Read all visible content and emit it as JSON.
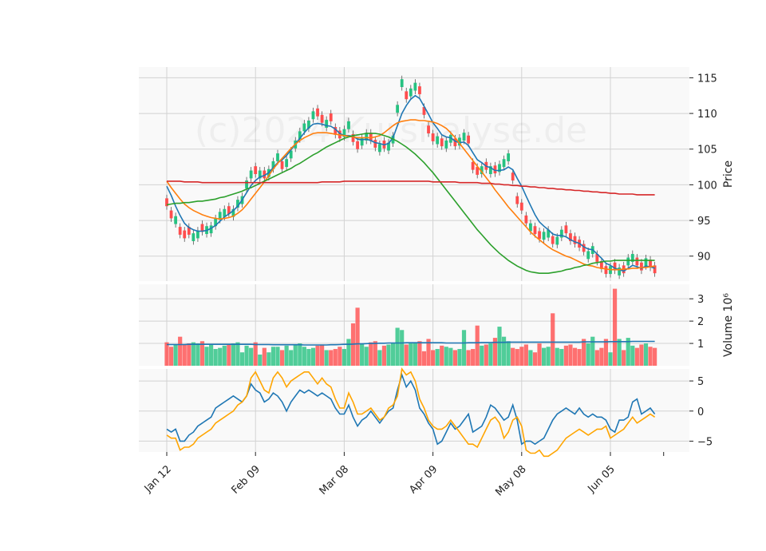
{
  "chart_data": {
    "type": "candlestick",
    "watermark": "(c)2024 Kursnalyse.de",
    "panels": {
      "price": {
        "ylabel": "Price",
        "yticks": [
          90,
          95,
          100,
          105,
          110,
          115
        ],
        "ylim": [
          86.5,
          116.5
        ]
      },
      "volume": {
        "ylabel": "Volume  10^6",
        "yticks": [
          "1",
          "2",
          "3"
        ],
        "ylim": [
          0,
          3.65
        ]
      },
      "oscillator": {
        "ylabel": "",
        "yticks": [
          "5",
          "0",
          "−5"
        ],
        "ylim": [
          -6.8,
          7
        ]
      }
    },
    "x_tick_labels": [
      "Jan 12",
      "Feb 09",
      "Mar 08",
      "Apr 09",
      "May 08",
      "Jun 05"
    ],
    "x_tick_index": [
      0,
      20,
      40,
      60,
      80,
      100
    ],
    "candles_close": [
      97.0,
      95.3,
      95.6,
      93.0,
      92.5,
      93.0,
      93.2,
      93.6,
      93.4,
      94.2,
      94.3,
      95.3,
      96.2,
      96.6,
      95.9,
      96.6,
      97.9,
      98.4,
      100.6,
      102.0,
      101.5,
      102.0,
      100.9,
      102.2,
      103.3,
      104.4,
      102.2,
      103.6,
      104.8,
      106.2,
      107.5,
      108.6,
      109.0,
      110.3,
      109.6,
      108.7,
      109.1,
      108.9,
      107.0,
      106.5,
      107.8,
      108.9,
      106.0,
      105.0,
      106.6,
      107.3,
      106.2,
      105.2,
      105.7,
      105.1,
      105.9,
      106.9,
      111.2,
      114.8,
      112.0,
      113.5,
      114.3,
      112.7,
      109.8,
      107.2,
      106.1,
      106.8,
      105.4,
      106.2,
      107.0,
      105.4,
      106.6,
      107.3,
      105.8,
      102.1,
      101.4,
      102.6,
      102.1,
      102.6,
      101.6,
      102.9,
      103.6,
      104.4,
      100.6,
      97.3,
      96.4,
      94.6,
      94.6,
      93.1,
      92.4,
      93.4,
      93.7,
      91.7,
      92.7,
      93.7,
      93.2,
      92.1,
      91.7,
      91.2,
      90.6,
      90.7,
      91.4,
      89.2,
      88.2,
      87.5,
      88.6,
      88.0,
      88.4,
      87.6,
      89.8,
      90.3,
      88.7,
      88.0,
      89.7,
      88.4,
      87.6
    ],
    "candles_up": [
      false,
      false,
      true,
      false,
      false,
      false,
      true,
      true,
      false,
      true,
      true,
      true,
      true,
      true,
      false,
      true,
      true,
      true,
      true,
      true,
      false,
      true,
      false,
      true,
      true,
      true,
      false,
      true,
      true,
      true,
      true,
      true,
      true,
      true,
      false,
      false,
      true,
      false,
      false,
      false,
      true,
      true,
      false,
      false,
      true,
      true,
      false,
      false,
      true,
      false,
      true,
      true,
      true,
      true,
      false,
      true,
      true,
      false,
      false,
      false,
      false,
      true,
      false,
      true,
      true,
      false,
      true,
      true,
      false,
      false,
      false,
      true,
      false,
      true,
      false,
      true,
      true,
      true,
      false,
      false,
      false,
      false,
      true,
      false,
      false,
      true,
      true,
      false,
      true,
      true,
      false,
      false,
      false,
      false,
      false,
      true,
      true,
      false,
      false,
      false,
      true,
      false,
      true,
      false,
      true,
      true,
      false,
      false,
      true,
      false,
      false
    ],
    "volume_millions": [
      1.05,
      0.85,
      0.95,
      1.3,
      0.95,
      1.0,
      1.05,
      1.0,
      1.1,
      0.85,
      0.95,
      0.75,
      0.8,
      0.9,
      0.95,
      1.0,
      1.05,
      0.6,
      0.9,
      0.8,
      1.05,
      0.5,
      0.8,
      0.6,
      0.85,
      0.85,
      0.7,
      0.9,
      0.7,
      0.95,
      1.0,
      0.85,
      0.75,
      0.8,
      0.9,
      0.95,
      0.7,
      0.7,
      0.75,
      0.85,
      0.75,
      1.2,
      1.9,
      2.6,
      1.0,
      0.85,
      1.05,
      1.1,
      0.7,
      0.9,
      0.95,
      1.0,
      1.7,
      1.6,
      0.95,
      1.0,
      1.05,
      1.1,
      0.65,
      1.2,
      0.7,
      0.75,
      0.9,
      0.85,
      0.8,
      0.7,
      0.75,
      1.6,
      0.7,
      0.75,
      1.8,
      0.9,
      0.95,
      1.0,
      1.25,
      1.75,
      1.3,
      1.1,
      0.8,
      0.75,
      0.85,
      0.95,
      0.7,
      0.6,
      1.0,
      0.8,
      0.85,
      2.35,
      0.8,
      0.75,
      0.9,
      0.95,
      0.8,
      0.75,
      1.2,
      1.0,
      1.3,
      0.7,
      0.8,
      1.2,
      0.6,
      3.45,
      1.2,
      0.7,
      1.25,
      0.9,
      0.8,
      0.95,
      1.0,
      0.85,
      0.8
    ],
    "series": [
      {
        "color": "#1f77b4",
        "role": "price short average",
        "values": [
          99.8,
          98.5,
          97.0,
          95.7,
          94.6,
          94.0,
          93.7,
          93.5,
          93.5,
          93.6,
          93.9,
          94.3,
          94.9,
          95.5,
          95.9,
          96.4,
          97.0,
          97.9,
          98.9,
          99.9,
          100.6,
          101.1,
          101.3,
          101.7,
          102.4,
          103.1,
          103.5,
          104.1,
          104.9,
          105.7,
          106.5,
          107.3,
          108.0,
          108.5,
          108.6,
          108.5,
          108.3,
          108.2,
          107.8,
          107.2,
          106.9,
          106.9,
          106.8,
          106.4,
          106.3,
          106.4,
          106.2,
          105.9,
          105.8,
          105.6,
          105.8,
          106.6,
          108.3,
          110.0,
          111.1,
          112.0,
          112.5,
          112.1,
          111.0,
          109.9,
          108.7,
          107.9,
          107.0,
          106.7,
          106.6,
          106.1,
          105.9,
          106.0,
          105.5,
          104.5,
          103.5,
          103.1,
          102.6,
          102.4,
          102.0,
          102.0,
          102.1,
          102.5,
          102.1,
          100.9,
          99.8,
          98.4,
          97.1,
          95.8,
          94.8,
          94.2,
          93.7,
          93.1,
          92.9,
          92.9,
          92.7,
          92.3,
          92.0,
          91.8,
          91.3,
          91.0,
          90.9,
          90.3,
          89.7,
          89.0,
          88.7,
          88.3,
          88.1,
          87.9,
          88.3,
          88.7,
          88.5,
          88.3,
          88.6,
          88.5,
          88.3
        ]
      },
      {
        "color": "#ff7f0e",
        "role": "price medium average",
        "values": [
          100.5,
          99.6,
          98.8,
          98.0,
          97.3,
          96.8,
          96.4,
          96.1,
          95.8,
          95.6,
          95.4,
          95.3,
          95.2,
          95.3,
          95.4,
          95.6,
          96.0,
          96.5,
          97.2,
          98.0,
          98.8,
          99.6,
          100.4,
          101.3,
          102.2,
          103.0,
          103.7,
          104.4,
          105.1,
          105.7,
          106.2,
          106.6,
          106.9,
          107.2,
          107.3,
          107.3,
          107.3,
          107.2,
          107.1,
          107.0,
          106.9,
          106.8,
          106.7,
          106.6,
          106.6,
          106.6,
          106.6,
          106.7,
          106.9,
          107.3,
          107.8,
          108.3,
          108.7,
          108.9,
          109.0,
          109.1,
          109.1,
          109.0,
          109.0,
          108.9,
          108.8,
          108.6,
          108.3,
          107.9,
          107.3,
          106.6,
          105.8,
          105.0,
          104.2,
          103.4,
          102.6,
          101.8,
          101.0,
          100.2,
          99.3,
          98.5,
          97.7,
          96.9,
          96.2,
          95.5,
          94.8,
          94.1,
          93.4,
          92.8,
          92.3,
          91.8,
          91.3,
          90.9,
          90.6,
          90.3,
          90.0,
          89.8,
          89.5,
          89.2,
          88.9,
          88.7,
          88.6,
          88.4,
          88.3,
          88.2,
          88.1,
          88.1,
          88.1,
          88.2,
          88.2,
          88.3,
          88.3,
          88.4,
          88.4,
          88.5,
          88.6
        ]
      },
      {
        "color": "#2ca02c",
        "role": "price long average",
        "values": [
          97.2,
          97.3,
          97.4,
          97.4,
          97.5,
          97.5,
          97.6,
          97.7,
          97.7,
          97.8,
          97.9,
          98.0,
          98.2,
          98.3,
          98.5,
          98.7,
          98.9,
          99.1,
          99.4,
          99.6,
          99.9,
          100.2,
          100.5,
          100.8,
          101.1,
          101.4,
          101.7,
          102.0,
          102.3,
          102.7,
          103.0,
          103.4,
          103.8,
          104.2,
          104.5,
          104.9,
          105.3,
          105.6,
          105.9,
          106.2,
          106.5,
          106.7,
          106.9,
          107.0,
          107.1,
          107.2,
          107.2,
          107.2,
          107.1,
          106.9,
          106.7,
          106.4,
          106.1,
          105.7,
          105.3,
          104.8,
          104.3,
          103.7,
          103.1,
          102.4,
          101.7,
          100.9,
          100.1,
          99.3,
          98.5,
          97.7,
          96.9,
          96.1,
          95.3,
          94.5,
          93.7,
          93.0,
          92.3,
          91.6,
          91.0,
          90.4,
          89.9,
          89.4,
          89.0,
          88.6,
          88.3,
          88.0,
          87.8,
          87.7,
          87.6,
          87.6,
          87.6,
          87.7,
          87.8,
          87.9,
          88.1,
          88.2,
          88.4,
          88.5,
          88.7,
          88.8,
          89.0,
          89.1,
          89.2,
          89.3,
          89.3,
          89.4,
          89.4,
          89.4,
          89.4,
          89.4,
          89.4,
          89.4,
          89.4,
          89.4,
          89.4
        ]
      },
      {
        "color": "#d62728",
        "role": "price longest average",
        "values": [
          100.5,
          100.5,
          100.5,
          100.5,
          100.4,
          100.4,
          100.4,
          100.4,
          100.3,
          100.3,
          100.3,
          100.3,
          100.3,
          100.3,
          100.3,
          100.3,
          100.3,
          100.3,
          100.3,
          100.3,
          100.3,
          100.3,
          100.3,
          100.3,
          100.3,
          100.3,
          100.3,
          100.3,
          100.3,
          100.3,
          100.3,
          100.3,
          100.3,
          100.3,
          100.3,
          100.4,
          100.4,
          100.4,
          100.4,
          100.4,
          100.5,
          100.5,
          100.5,
          100.5,
          100.5,
          100.5,
          100.5,
          100.5,
          100.5,
          100.5,
          100.5,
          100.5,
          100.5,
          100.5,
          100.5,
          100.5,
          100.5,
          100.5,
          100.5,
          100.5,
          100.4,
          100.4,
          100.4,
          100.4,
          100.4,
          100.4,
          100.3,
          100.3,
          100.3,
          100.3,
          100.3,
          100.2,
          100.2,
          100.2,
          100.1,
          100.1,
          100.0,
          100.0,
          99.9,
          99.9,
          99.8,
          99.8,
          99.7,
          99.7,
          99.6,
          99.6,
          99.5,
          99.5,
          99.4,
          99.4,
          99.3,
          99.3,
          99.2,
          99.2,
          99.1,
          99.1,
          99.0,
          99.0,
          98.9,
          98.9,
          98.8,
          98.8,
          98.7,
          98.7,
          98.7,
          98.7,
          98.6,
          98.6,
          98.6,
          98.6,
          98.6
        ]
      },
      {
        "color": "#1f77b4",
        "role": "volume average",
        "values": [
          0.95,
          0.95,
          0.95,
          0.95,
          0.95,
          0.96,
          0.96,
          0.96,
          0.96,
          0.96,
          0.96,
          0.96,
          0.96,
          0.96,
          0.96,
          0.96,
          0.96,
          0.96,
          0.96,
          0.96,
          0.95,
          0.95,
          0.95,
          0.95,
          0.94,
          0.94,
          0.94,
          0.94,
          0.94,
          0.94,
          0.94,
          0.93,
          0.93,
          0.93,
          0.93,
          0.93,
          0.93,
          0.94,
          0.94,
          0.95,
          0.96,
          0.96,
          0.97,
          0.98,
          0.98,
          0.99,
          1.0,
          1.0,
          1.01,
          1.01,
          1.02,
          1.02,
          1.02,
          1.02,
          1.03,
          1.03,
          1.03,
          1.03,
          1.03,
          1.03,
          1.03,
          1.03,
          1.03,
          1.02,
          1.02,
          1.02,
          1.02,
          1.02,
          1.03,
          1.03,
          1.03,
          1.04,
          1.04,
          1.04,
          1.05,
          1.05,
          1.05,
          1.06,
          1.06,
          1.06,
          1.06,
          1.06,
          1.06,
          1.06,
          1.06,
          1.06,
          1.06,
          1.06,
          1.06,
          1.06,
          1.06,
          1.06,
          1.06,
          1.06,
          1.07,
          1.07,
          1.07,
          1.07,
          1.07,
          1.07,
          1.08,
          1.08,
          1.08,
          1.08,
          1.08,
          1.09,
          1.09,
          1.09,
          1.09,
          1.09,
          1.09
        ]
      },
      {
        "color": "#1f77b4",
        "role": "oscillator line",
        "values": [
          -3.0,
          -3.5,
          -3.0,
          -5.0,
          -5.0,
          -4.0,
          -3.5,
          -2.5,
          -2.0,
          -1.5,
          -1.0,
          0.5,
          1.0,
          1.5,
          2.0,
          2.5,
          2.0,
          1.5,
          2.5,
          4.5,
          3.5,
          3.0,
          1.5,
          2.0,
          3.0,
          2.5,
          1.5,
          0.0,
          1.5,
          2.5,
          3.5,
          3.0,
          3.5,
          3.0,
          2.5,
          3.0,
          2.5,
          2.0,
          0.5,
          -0.5,
          -0.5,
          1.0,
          -1.0,
          -2.5,
          -1.5,
          -1.0,
          0.0,
          -1.0,
          -2.0,
          -1.0,
          0.0,
          0.5,
          3.5,
          6.0,
          4.0,
          5.0,
          3.5,
          0.5,
          -0.5,
          -2.0,
          -3.0,
          -5.5,
          -5.0,
          -3.5,
          -2.0,
          -3.0,
          -2.5,
          -1.5,
          -0.5,
          -3.5,
          -3.0,
          -2.5,
          -1.0,
          1.0,
          0.5,
          -0.5,
          -1.5,
          -1.0,
          1.0,
          -1.5,
          -5.5,
          -5.0,
          -5.0,
          -5.5,
          -5.0,
          -4.5,
          -3.0,
          -1.5,
          -0.5,
          0.0,
          0.5,
          0.0,
          -0.5,
          0.5,
          -0.5,
          -1.0,
          -0.5,
          -1.0,
          -1.0,
          -1.5,
          -3.0,
          -3.5,
          -1.5,
          -1.5,
          -1.0,
          1.5,
          2.0,
          -0.5,
          0.0,
          0.5,
          -0.5
        ]
      },
      {
        "color": "#ffa500",
        "role": "oscillator line",
        "values": [
          -4.0,
          -4.5,
          -4.5,
          -6.5,
          -6.0,
          -6.0,
          -5.5,
          -4.5,
          -4.0,
          -3.5,
          -3.0,
          -2.0,
          -1.5,
          -1.0,
          -0.5,
          0.0,
          1.0,
          1.5,
          2.5,
          5.5,
          6.5,
          5.0,
          3.5,
          3.0,
          5.5,
          6.5,
          5.5,
          4.0,
          5.0,
          5.5,
          6.0,
          6.5,
          6.5,
          5.5,
          4.5,
          5.5,
          4.5,
          4.0,
          2.0,
          0.5,
          0.5,
          3.0,
          1.5,
          -0.5,
          -0.5,
          0.0,
          0.5,
          -0.5,
          -1.5,
          -1.0,
          0.5,
          1.0,
          2.5,
          7.0,
          6.0,
          6.5,
          5.0,
          2.0,
          0.5,
          -1.5,
          -2.5,
          -3.0,
          -3.0,
          -2.5,
          -1.5,
          -2.5,
          -3.5,
          -4.5,
          -5.5,
          -5.5,
          -6.0,
          -4.5,
          -3.0,
          -1.5,
          -1.0,
          -2.0,
          -4.5,
          -3.5,
          -1.5,
          -1.0,
          -2.5,
          -6.5,
          -7.0,
          -7.0,
          -6.5,
          -7.5,
          -7.5,
          -7.0,
          -6.5,
          -5.5,
          -4.5,
          -4.0,
          -3.5,
          -3.0,
          -3.5,
          -4.0,
          -3.5,
          -3.0,
          -3.0,
          -2.5,
          -4.5,
          -4.0,
          -3.5,
          -3.0,
          -2.0,
          -1.0,
          -2.0,
          -1.5,
          -1.0,
          -0.5,
          -1.0
        ]
      }
    ]
  }
}
